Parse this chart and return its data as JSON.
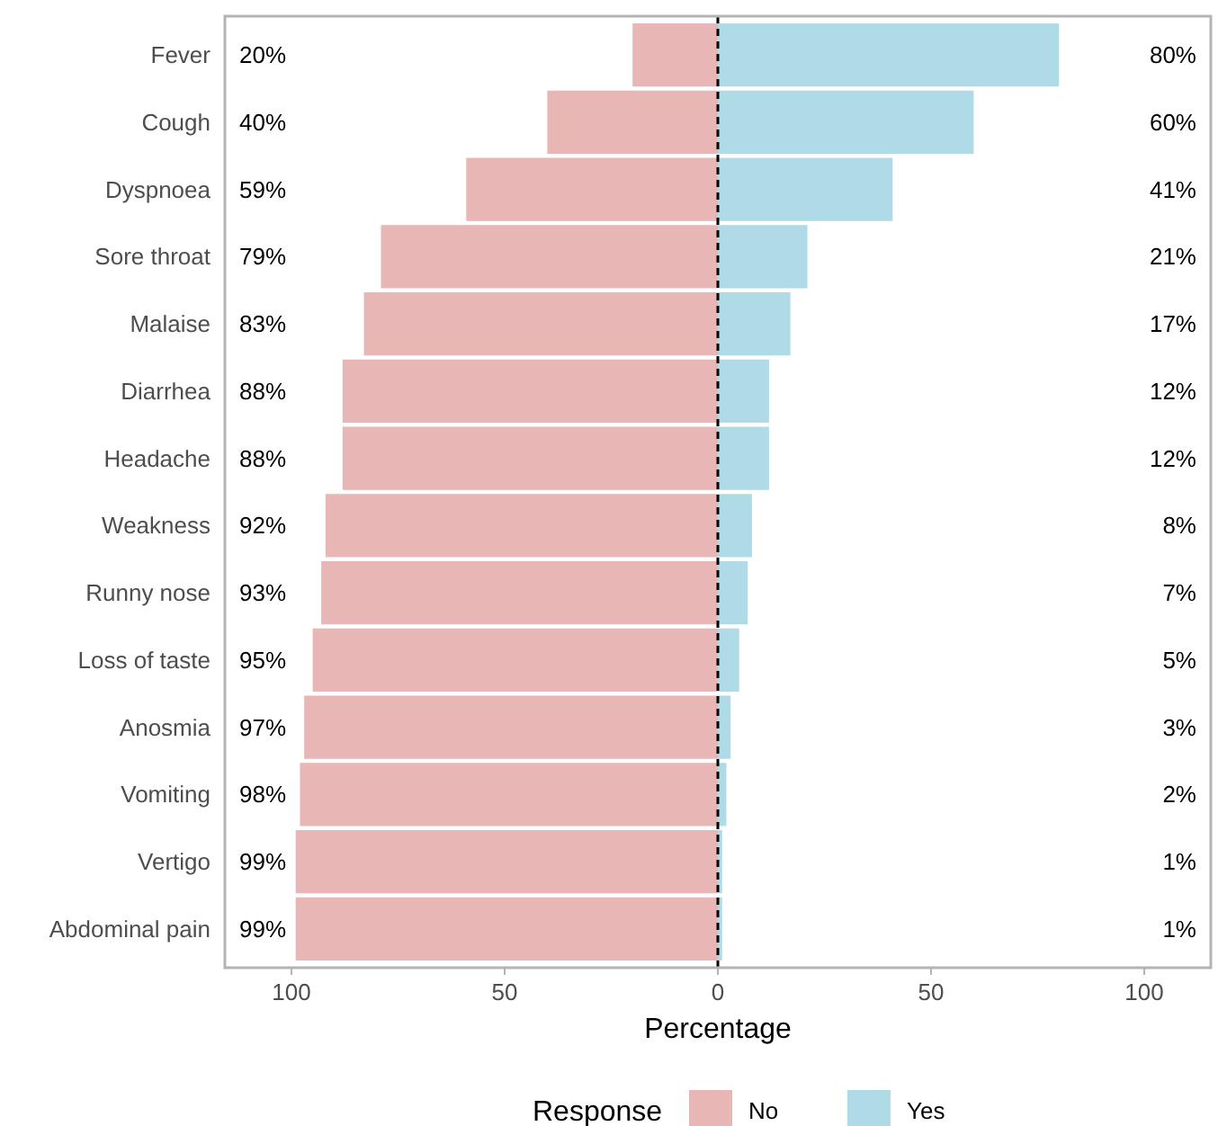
{
  "chart_data": {
    "type": "bar",
    "orientation": "horizontal",
    "xlabel": "Percentage",
    "legend_title": "Response",
    "legend": "bottom",
    "grid": false,
    "categories": [
      "Fever",
      "Cough",
      "Dyspnoea",
      "Sore throat",
      "Malaise",
      "Diarrhea",
      "Headache",
      "Weakness",
      "Runny nose",
      "Loss of taste",
      "Anosmia",
      "Vomiting",
      "Vertigo",
      "Abdominal pain"
    ],
    "series": [
      {
        "name": "No",
        "color": "#e8b6b5",
        "base": [
          -20,
          -40,
          -59,
          -79,
          -83,
          -88,
          -88,
          -92,
          -93,
          -95,
          -97,
          -98,
          -99,
          -99
        ],
        "values": [
          20,
          40,
          59,
          79,
          83,
          88,
          88,
          92,
          93,
          95,
          97,
          98,
          99,
          99
        ],
        "value_labels": [
          "20%",
          "40%",
          "59%",
          "79%",
          "83%",
          "88%",
          "88%",
          "92%",
          "93%",
          "95%",
          "97%",
          "98%",
          "99%",
          "99%"
        ]
      },
      {
        "name": "Yes",
        "color": "#afdbe6",
        "values": [
          80,
          60,
          41,
          21,
          17,
          12,
          12,
          8,
          7,
          5,
          3,
          2,
          1,
          1
        ],
        "value_labels": [
          "80%",
          "60%",
          "41%",
          "21%",
          "17%",
          "12%",
          "12%",
          "8%",
          "7%",
          "5%",
          "3%",
          "2%",
          "1%",
          "1%"
        ]
      }
    ],
    "xlim": [
      -115.6,
      115.6
    ],
    "xticks": [
      {
        "value": -100,
        "label": "100"
      },
      {
        "value": -50,
        "label": "50"
      },
      0,
      50,
      100
    ],
    "ref_lines": [
      {
        "axis": "x",
        "value": 0,
        "color": "#000000",
        "line_style": "dashed"
      }
    ]
  }
}
